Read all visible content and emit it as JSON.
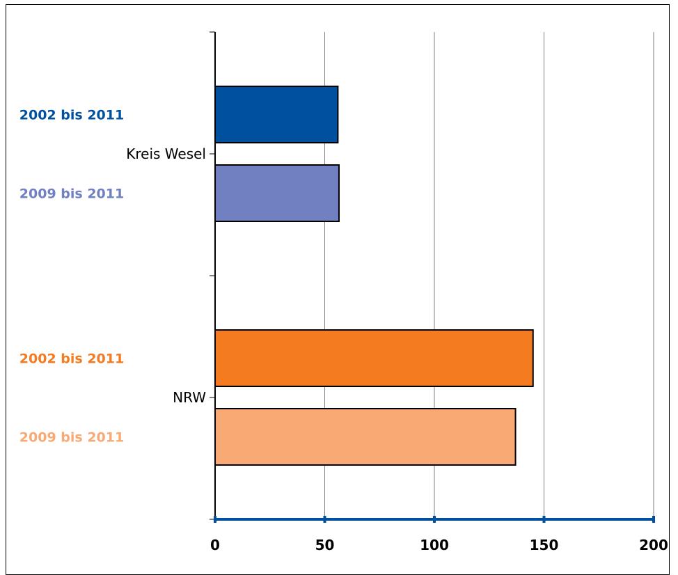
{
  "chart_data": {
    "type": "bar",
    "orientation": "horizontal",
    "title": "",
    "xlabel": "",
    "ylabel": "",
    "xlim": [
      0,
      200
    ],
    "x_ticks": [
      0,
      50,
      100,
      150,
      200
    ],
    "grid": "vertical",
    "categories": [
      {
        "name": "Kreis Wesel",
        "bars": [
          {
            "series": "2002 bis 2011",
            "value": 56,
            "color": "#0050a0"
          },
          {
            "series": "2009 bis 2011",
            "value": 56.5,
            "color": "#7080c0"
          }
        ]
      },
      {
        "name": "NRW",
        "bars": [
          {
            "series": "2002 bis 2011",
            "value": 145,
            "color": "#f47b20"
          },
          {
            "series": "2009 bis 2011",
            "value": 137,
            "color": "#f9aa74"
          }
        ]
      }
    ],
    "axis_color": "#0050a0"
  }
}
